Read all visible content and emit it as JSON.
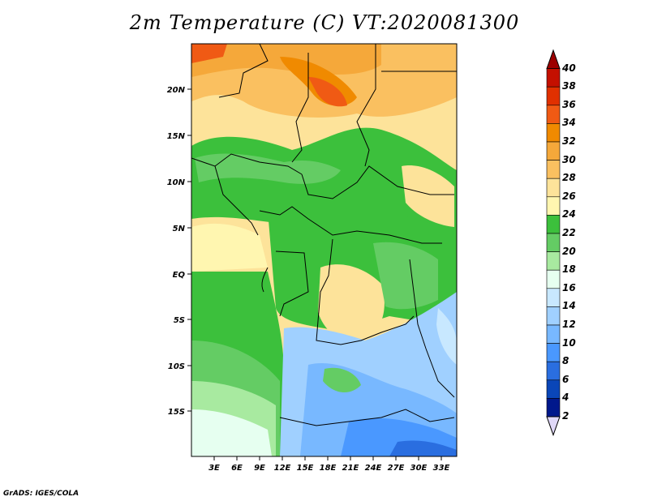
{
  "title": "2m Temperature (C) VT:2020081300",
  "credit": "GrADS: IGES/COLA",
  "lat_ticks": [
    "20N",
    "15N",
    "10N",
    "5N",
    "EQ",
    "5S",
    "10S",
    "15S"
  ],
  "lon_ticks": [
    "3E",
    "6E",
    "9E",
    "12E",
    "15E",
    "18E",
    "21E",
    "24E",
    "27E",
    "30E",
    "33E"
  ],
  "colorbar": {
    "labels": [
      "40",
      "38",
      "36",
      "34",
      "32",
      "30",
      "28",
      "26",
      "24",
      "22",
      "20",
      "18",
      "16",
      "14",
      "12",
      "10",
      "8",
      "6",
      "4",
      "2"
    ],
    "colors": [
      "#9c0000",
      "#c41000",
      "#e03000",
      "#f05a14",
      "#f08a00",
      "#f5a83a",
      "#fac060",
      "#fde39a",
      "#fff6b0",
      "#3cc03c",
      "#64cc64",
      "#a8eaa0",
      "#e6fff0",
      "#c8e8ff",
      "#a0d0ff",
      "#78b8ff",
      "#4a98ff",
      "#2a6ee0",
      "#0a46b8",
      "#00188c",
      "#000a5a"
    ]
  },
  "chart_data": {
    "type": "heatmap",
    "title": "2m Temperature (C) VT:2020081300",
    "variable": "2m Temperature",
    "unit": "C",
    "valid_time": "2020081300",
    "lon_range": [
      0,
      35
    ],
    "lat_range": [
      -20,
      25
    ],
    "lat_ticks": [
      "20N",
      "15N",
      "10N",
      "5N",
      "EQ",
      "5S",
      "10S",
      "15S"
    ],
    "lon_ticks": [
      "3E",
      "6E",
      "9E",
      "12E",
      "15E",
      "18E",
      "21E",
      "24E",
      "27E",
      "30E",
      "33E"
    ],
    "colorbar_levels": [
      2,
      4,
      6,
      8,
      10,
      12,
      14,
      16,
      18,
      20,
      22,
      24,
      26,
      28,
      30,
      32,
      34,
      36,
      38,
      40
    ]
  }
}
